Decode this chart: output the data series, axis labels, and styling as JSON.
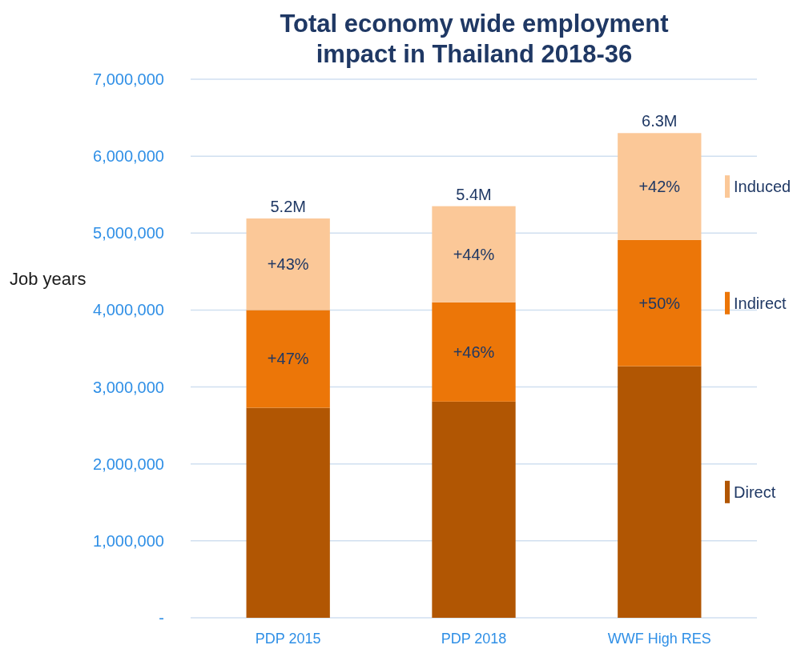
{
  "chart_data": {
    "type": "bar",
    "title": "Total economy wide employment impact in Thailand 2018-36",
    "ylabel": "Job years",
    "categories": [
      "PDP 2015",
      "PDP 2018",
      "WWF High RES"
    ],
    "stacked": true,
    "series": [
      {
        "name": "Direct",
        "color": "#b15603",
        "values": [
          2730000,
          2810000,
          3270000
        ]
      },
      {
        "name": "Indirect",
        "color": "#ec7608",
        "values": [
          1270000,
          1290000,
          1640000
        ]
      },
      {
        "name": "Induced",
        "color": "#fbc898",
        "values": [
          1190000,
          1250000,
          1390000
        ]
      }
    ],
    "annotations": [
      "+47%",
      "+46%",
      "+50%",
      "+43%",
      "+44%",
      "+42%"
    ],
    "totals": [
      "5.2M",
      "5.4M",
      "6.3M"
    ],
    "ylim": [
      0,
      7000000
    ],
    "yticks": [
      {
        "value": 0,
        "label": "-"
      },
      {
        "value": 1000000,
        "label": "1,000,000"
      },
      {
        "value": 2000000,
        "label": "2,000,000"
      },
      {
        "value": 3000000,
        "label": "3,000,000"
      },
      {
        "value": 4000000,
        "label": "4,000,000"
      },
      {
        "value": 5000000,
        "label": "5,000,000"
      },
      {
        "value": 6000000,
        "label": "6,000,000"
      },
      {
        "value": 7000000,
        "label": "7,000,000"
      }
    ],
    "grid": "y",
    "legend": "right"
  }
}
